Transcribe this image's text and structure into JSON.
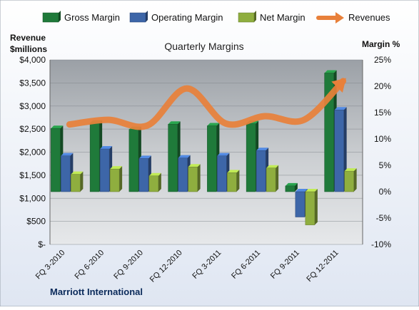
{
  "chart_data": {
    "type": "bar",
    "title": "Quarterly Margins",
    "left_axis_title": [
      "Revenue",
      "$millions"
    ],
    "right_axis_title": "Margin %",
    "footer_label": "Marriott International",
    "categories": [
      "FQ 3-2010",
      "FQ 6-2010",
      "FQ 9-2010",
      "FQ 12-2010",
      "FQ 3-2011",
      "FQ 6-2011",
      "FQ 9-2011",
      "FQ 12-2011"
    ],
    "left_axis": {
      "ylim": [
        0,
        4000
      ],
      "ticks": [
        "$-",
        "$500",
        "$1,000",
        "$1,500",
        "$2,000",
        "$2,500",
        "$3,000",
        "$3,500",
        "$4,000"
      ]
    },
    "right_axis": {
      "ylim": [
        -10,
        25
      ],
      "ticks": [
        "-10%",
        "-5%",
        "0%",
        "5%",
        "10%",
        "15%",
        "20%",
        "25%"
      ]
    },
    "series": [
      {
        "name": "Gross Margin",
        "axis": "right",
        "type": "bar",
        "color": "#1f7a3a",
        "values": [
          12.0,
          13.0,
          11.8,
          12.8,
          12.5,
          12.9,
          1.1,
          22.5
        ]
      },
      {
        "name": "Operating Margin",
        "axis": "right",
        "type": "bar",
        "color": "#3d66a8",
        "values": [
          6.8,
          8.1,
          6.3,
          6.4,
          6.8,
          7.8,
          -4.8,
          15.5
        ]
      },
      {
        "name": "Net Margin",
        "axis": "right",
        "type": "bar",
        "color": "#8fae3f",
        "values": [
          3.3,
          4.3,
          3.0,
          4.7,
          3.6,
          4.5,
          -6.3,
          3.9
        ]
      },
      {
        "name": "Revenues",
        "axis": "left",
        "type": "line",
        "color": "#e8803a",
        "values": [
          2600,
          2700,
          2580,
          3380,
          2620,
          2780,
          2700,
          3540
        ]
      }
    ],
    "legend_position": "top",
    "grid": true
  }
}
